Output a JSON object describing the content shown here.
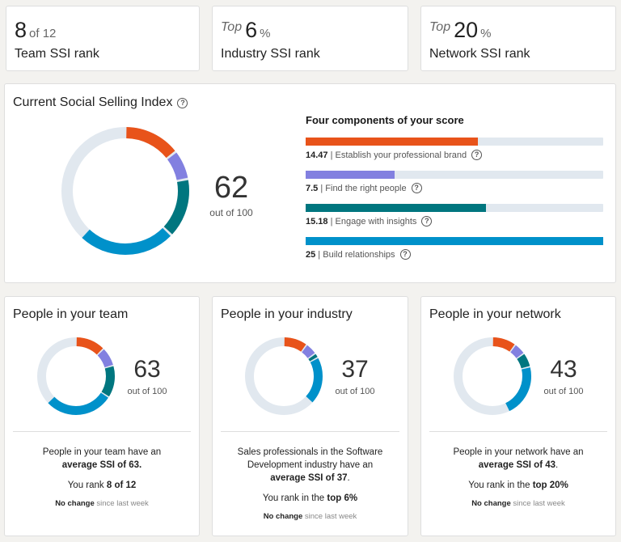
{
  "ranks": [
    {
      "prefix": "",
      "value": "8",
      "suffix": "of 12",
      "label": "Team SSI rank"
    },
    {
      "prefix": "Top",
      "value": "6",
      "suffix": "%",
      "label": "Industry SSI rank"
    },
    {
      "prefix": "Top",
      "value": "20",
      "suffix": "%",
      "label": "Network SSI rank"
    }
  ],
  "main": {
    "title": "Current Social Selling Index",
    "score": "62",
    "out_of": "out of 100",
    "components_title": "Four components of your score",
    "components": [
      {
        "value": "14.47",
        "label": "Establish your professional brand",
        "fraction": 0.5788,
        "color": "#e8531a"
      },
      {
        "value": "7.5",
        "label": "Find the right people",
        "fraction": 0.3,
        "color": "#8280e0"
      },
      {
        "value": "15.18",
        "label": "Engage with insights",
        "fraction": 0.6072,
        "color": "#00767f"
      },
      {
        "value": "25",
        "label": "Build relationships",
        "fraction": 1.0,
        "color": "#0091ca"
      }
    ]
  },
  "groups": [
    {
      "title": "People in your team",
      "score": "63",
      "out_of": "out of 100",
      "segments": [
        12.5,
        8,
        13.5,
        29
      ],
      "desc1": "People in your team have an",
      "desc_bold": "average SSI of 63.",
      "desc_after": "",
      "rank_pre": "You rank ",
      "rank_bold": "8 of 12",
      "change_bold": "No change",
      "change": " since last week"
    },
    {
      "title": "People in your industry",
      "score": "37",
      "out_of": "out of 100",
      "segments": [
        10,
        5,
        2,
        20
      ],
      "desc1": "Sales professionals in the Software Development industry have an",
      "desc_bold": "average SSI of 37",
      "desc_after": ".",
      "rank_pre": "You rank in the ",
      "rank_bold": "top 6%",
      "change_bold": "No change",
      "change": " since last week"
    },
    {
      "title": "People in your network",
      "score": "43",
      "out_of": "out of 100",
      "segments": [
        10,
        5,
        6,
        22
      ],
      "desc1": "People in your network have an",
      "desc_bold": "average SSI of 43",
      "desc_after": ".",
      "rank_pre": "You rank in the ",
      "rank_bold": "top 20%",
      "change_bold": "No change",
      "change": " since last week"
    }
  ],
  "colors": {
    "track": "#e1e8ef",
    "brand": "#e8531a",
    "people": "#8280e0",
    "insights": "#00767f",
    "relationships": "#0091ca"
  }
}
